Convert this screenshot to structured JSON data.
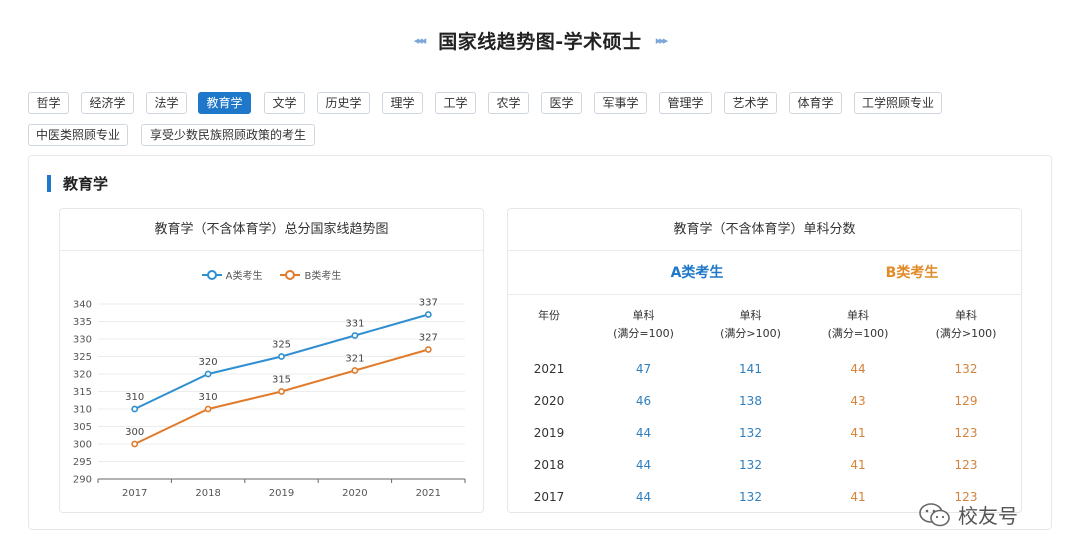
{
  "header": {
    "title": "国家线趋势图-学术硕士",
    "left_deco": "◂◂◂",
    "right_deco": "▸▸▸"
  },
  "tabs": [
    {
      "label": "哲学",
      "active": false
    },
    {
      "label": "经济学",
      "active": false
    },
    {
      "label": "法学",
      "active": false
    },
    {
      "label": "教育学",
      "active": true
    },
    {
      "label": "文学",
      "active": false
    },
    {
      "label": "历史学",
      "active": false
    },
    {
      "label": "理学",
      "active": false
    },
    {
      "label": "工学",
      "active": false
    },
    {
      "label": "农学",
      "active": false
    },
    {
      "label": "医学",
      "active": false
    },
    {
      "label": "军事学",
      "active": false
    },
    {
      "label": "管理学",
      "active": false
    },
    {
      "label": "艺术学",
      "active": false
    },
    {
      "label": "体育学",
      "active": false
    },
    {
      "label": "工学照顾专业",
      "active": false
    },
    {
      "label": "中医类照顾专业",
      "active": false
    },
    {
      "label": "享受少数民族照顾政策的考生",
      "active": false
    }
  ],
  "section": {
    "title": "教育学"
  },
  "chart_card": {
    "title": "教育学（不含体育学）总分国家线趋势图"
  },
  "chart_data": {
    "type": "line",
    "title": "教育学（不含体育学）总分国家线趋势图",
    "categories": [
      "2017",
      "2018",
      "2019",
      "2020",
      "2021"
    ],
    "series": [
      {
        "name": "A类考生",
        "values": [
          310,
          320,
          325,
          331,
          337
        ],
        "color": "#2f8fd1"
      },
      {
        "name": "B类考生",
        "values": [
          300,
          310,
          315,
          321,
          327
        ],
        "color": "#e07b2c"
      }
    ],
    "ylim": [
      290,
      340
    ],
    "yticks": [
      290,
      295,
      300,
      305,
      310,
      315,
      320,
      325,
      330,
      335,
      340
    ],
    "grid": true,
    "legend": "top-center"
  },
  "table_card": {
    "title": "教育学（不含体育学）单科分数",
    "group_a": "A类考生",
    "group_b": "B类考生",
    "col_year": "年份",
    "col_single_100": [
      "单科",
      "(满分=100)"
    ],
    "col_single_gt100": [
      "单科",
      "(满分>100)"
    ],
    "rows": [
      {
        "year": "2021",
        "a1": "47",
        "a2": "141",
        "b1": "44",
        "b2": "132"
      },
      {
        "year": "2020",
        "a1": "46",
        "a2": "138",
        "b1": "43",
        "b2": "129"
      },
      {
        "year": "2019",
        "a1": "44",
        "a2": "132",
        "b1": "41",
        "b2": "123"
      },
      {
        "year": "2018",
        "a1": "44",
        "a2": "132",
        "b1": "41",
        "b2": "123"
      },
      {
        "year": "2017",
        "a1": "44",
        "a2": "132",
        "b1": "41",
        "b2": "123"
      }
    ]
  },
  "watermark": {
    "text": "校友号"
  }
}
